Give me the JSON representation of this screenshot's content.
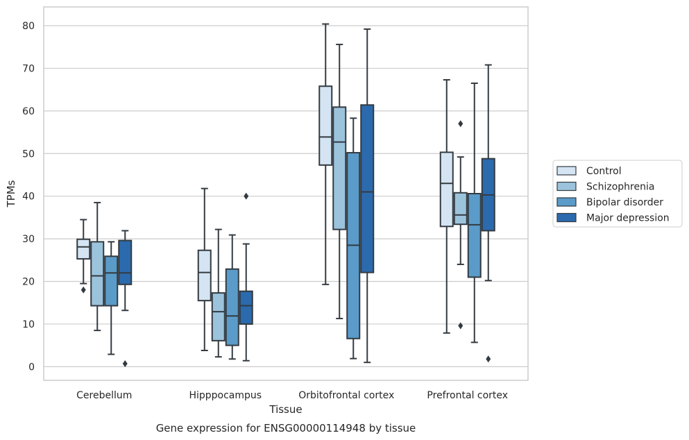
{
  "chart_data": {
    "type": "box",
    "xlabel": "Tissue",
    "ylabel": "TPMs",
    "caption": "Gene expression for ENSG00000114948 by tissue",
    "ylim": [
      -3.2,
      84.4
    ],
    "yticks": [
      0,
      10,
      20,
      30,
      40,
      50,
      60,
      70,
      80
    ],
    "grid": "horizontal",
    "legend_position": "right",
    "categories": [
      "Cerebellum",
      "Hipppocampus",
      "Orbitofrontal cortex",
      "Prefrontal cortex"
    ],
    "series": [
      {
        "name": "Control",
        "color": "#d4e4f2",
        "boxes": [
          {
            "whisker_low": 19.5,
            "q1": 25.3,
            "median": 28.1,
            "q3": 29.9,
            "whisker_high": 34.5,
            "outliers": [
              18.0
            ]
          },
          {
            "whisker_low": 3.8,
            "q1": 15.5,
            "median": 22.1,
            "q3": 27.3,
            "whisker_high": 41.8,
            "outliers": []
          },
          {
            "whisker_low": 19.3,
            "q1": 47.3,
            "median": 53.9,
            "q3": 65.8,
            "whisker_high": 80.4,
            "outliers": []
          },
          {
            "whisker_low": 7.9,
            "q1": 32.9,
            "median": 43.0,
            "q3": 50.3,
            "whisker_high": 67.3,
            "outliers": []
          }
        ]
      },
      {
        "name": "Schizophrenia",
        "color": "#9cc3dc",
        "boxes": [
          {
            "whisker_low": 8.5,
            "q1": 14.3,
            "median": 21.3,
            "q3": 29.3,
            "whisker_high": 38.5,
            "outliers": []
          },
          {
            "whisker_low": 2.3,
            "q1": 6.1,
            "median": 12.9,
            "q3": 17.3,
            "whisker_high": 32.2,
            "outliers": []
          },
          {
            "whisker_low": 11.3,
            "q1": 32.2,
            "median": 52.7,
            "q3": 60.9,
            "whisker_high": 75.6,
            "outliers": []
          },
          {
            "whisker_low": 24.0,
            "q1": 33.4,
            "median": 35.6,
            "q3": 40.8,
            "whisker_high": 49.2,
            "outliers": [
              57.0,
              9.6
            ]
          }
        ]
      },
      {
        "name": "Bipolar disorder",
        "color": "#5a9bc9",
        "boxes": [
          {
            "whisker_low": 2.9,
            "q1": 14.3,
            "median": 22.0,
            "q3": 25.9,
            "whisker_high": 29.3,
            "outliers": []
          },
          {
            "whisker_low": 1.8,
            "q1": 5.0,
            "median": 11.9,
            "q3": 22.9,
            "whisker_high": 30.9,
            "outliers": []
          },
          {
            "whisker_low": 1.9,
            "q1": 6.6,
            "median": 28.5,
            "q3": 50.2,
            "whisker_high": 58.3,
            "outliers": []
          },
          {
            "whisker_low": 5.7,
            "q1": 21.0,
            "median": 33.3,
            "q3": 40.6,
            "whisker_high": 66.5,
            "outliers": []
          }
        ]
      },
      {
        "name": "Major depression",
        "color": "#2b6aad",
        "boxes": [
          {
            "whisker_low": 13.2,
            "q1": 19.3,
            "median": 22.0,
            "q3": 29.6,
            "whisker_high": 31.9,
            "outliers": [
              0.7
            ]
          },
          {
            "whisker_low": 1.4,
            "q1": 10.0,
            "median": 14.3,
            "q3": 17.7,
            "whisker_high": 28.8,
            "outliers": [
              40.0
            ]
          },
          {
            "whisker_low": 1.0,
            "q1": 22.1,
            "median": 41.0,
            "q3": 61.4,
            "whisker_high": 79.2,
            "outliers": []
          },
          {
            "whisker_low": 20.2,
            "q1": 31.9,
            "median": 40.3,
            "q3": 48.8,
            "whisker_high": 70.8,
            "outliers": [
              1.8
            ]
          }
        ]
      }
    ]
  }
}
